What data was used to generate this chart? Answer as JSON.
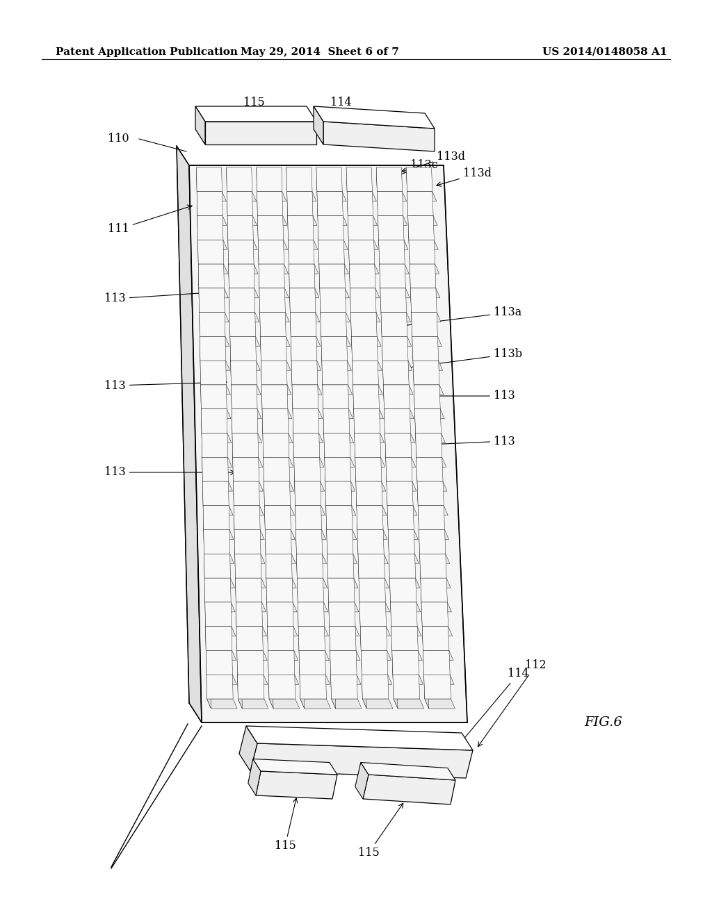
{
  "background_color": "#ffffff",
  "header_left": "Patent Application Publication",
  "header_center": "May 29, 2014  Sheet 6 of 7",
  "header_right": "US 2014/0148058 A1",
  "fig_label": "FIG.6",
  "header_font_size": 11,
  "annotation_font_size": 11.5,
  "body_color": "#f5f5f5",
  "body_side_color": "#e0e0e0",
  "body_dark_color": "#cccccc",
  "pin_top_color": "#f8f8f8",
  "pin_side_color": "#dddddd",
  "pin_front_color": "#e8e8e8"
}
